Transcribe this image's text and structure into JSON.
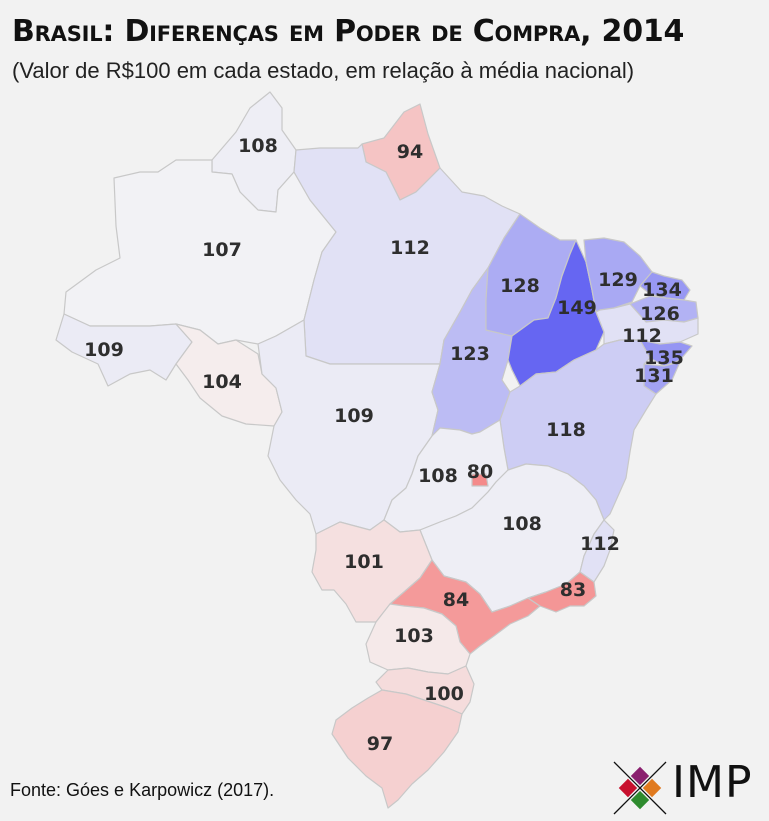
{
  "title": "Brasil: Diferenças em Poder de Compra, 2014",
  "subtitle": "(Valor de R$100 em cada estado, em relação à média nacional)",
  "source": "Fonte: Góes e Karpowicz (2017).",
  "logo_text": "IMP",
  "colors": {
    "background": "#f2f2f2",
    "low": "#f48a8a",
    "neutral": "#f5f5f5",
    "high": "#6666f2",
    "logo_purple": "#8a1f6e",
    "logo_red": "#c8102e",
    "logo_green": "#2e8b2e",
    "logo_orange": "#e07a1f"
  },
  "states": [
    {
      "id": "RR",
      "value": 108,
      "label": "108"
    },
    {
      "id": "AP",
      "value": 94,
      "label": "94"
    },
    {
      "id": "AM",
      "value": 107,
      "label": "107"
    },
    {
      "id": "PA",
      "value": 112,
      "label": "112"
    },
    {
      "id": "AC",
      "value": 109,
      "label": "109"
    },
    {
      "id": "RO",
      "value": 104,
      "label": "104"
    },
    {
      "id": "MT",
      "value": 109,
      "label": "109"
    },
    {
      "id": "TO",
      "value": 123,
      "label": "123"
    },
    {
      "id": "MA",
      "value": 128,
      "label": "128"
    },
    {
      "id": "PI",
      "value": 149,
      "label": "149"
    },
    {
      "id": "CE",
      "value": 129,
      "label": "129"
    },
    {
      "id": "RN",
      "value": 134,
      "label": "134"
    },
    {
      "id": "PB",
      "value": 126,
      "label": "126"
    },
    {
      "id": "PE",
      "value": 112,
      "label": "112"
    },
    {
      "id": "AL",
      "value": 135,
      "label": "135"
    },
    {
      "id": "SE",
      "value": 131,
      "label": "131"
    },
    {
      "id": "BA",
      "value": 118,
      "label": "118"
    },
    {
      "id": "GO",
      "value": 108,
      "label": "108"
    },
    {
      "id": "DF",
      "value": 80,
      "label": "80"
    },
    {
      "id": "MG",
      "value": 108,
      "label": "108"
    },
    {
      "id": "ES",
      "value": 112,
      "label": "112"
    },
    {
      "id": "MS",
      "value": 101,
      "label": "101"
    },
    {
      "id": "SP",
      "value": 84,
      "label": "84"
    },
    {
      "id": "RJ",
      "value": 83,
      "label": "83"
    },
    {
      "id": "PR",
      "value": 103,
      "label": "103"
    },
    {
      "id": "SC",
      "value": 100,
      "label": "100"
    },
    {
      "id": "RS",
      "value": 97,
      "label": "97"
    }
  ]
}
